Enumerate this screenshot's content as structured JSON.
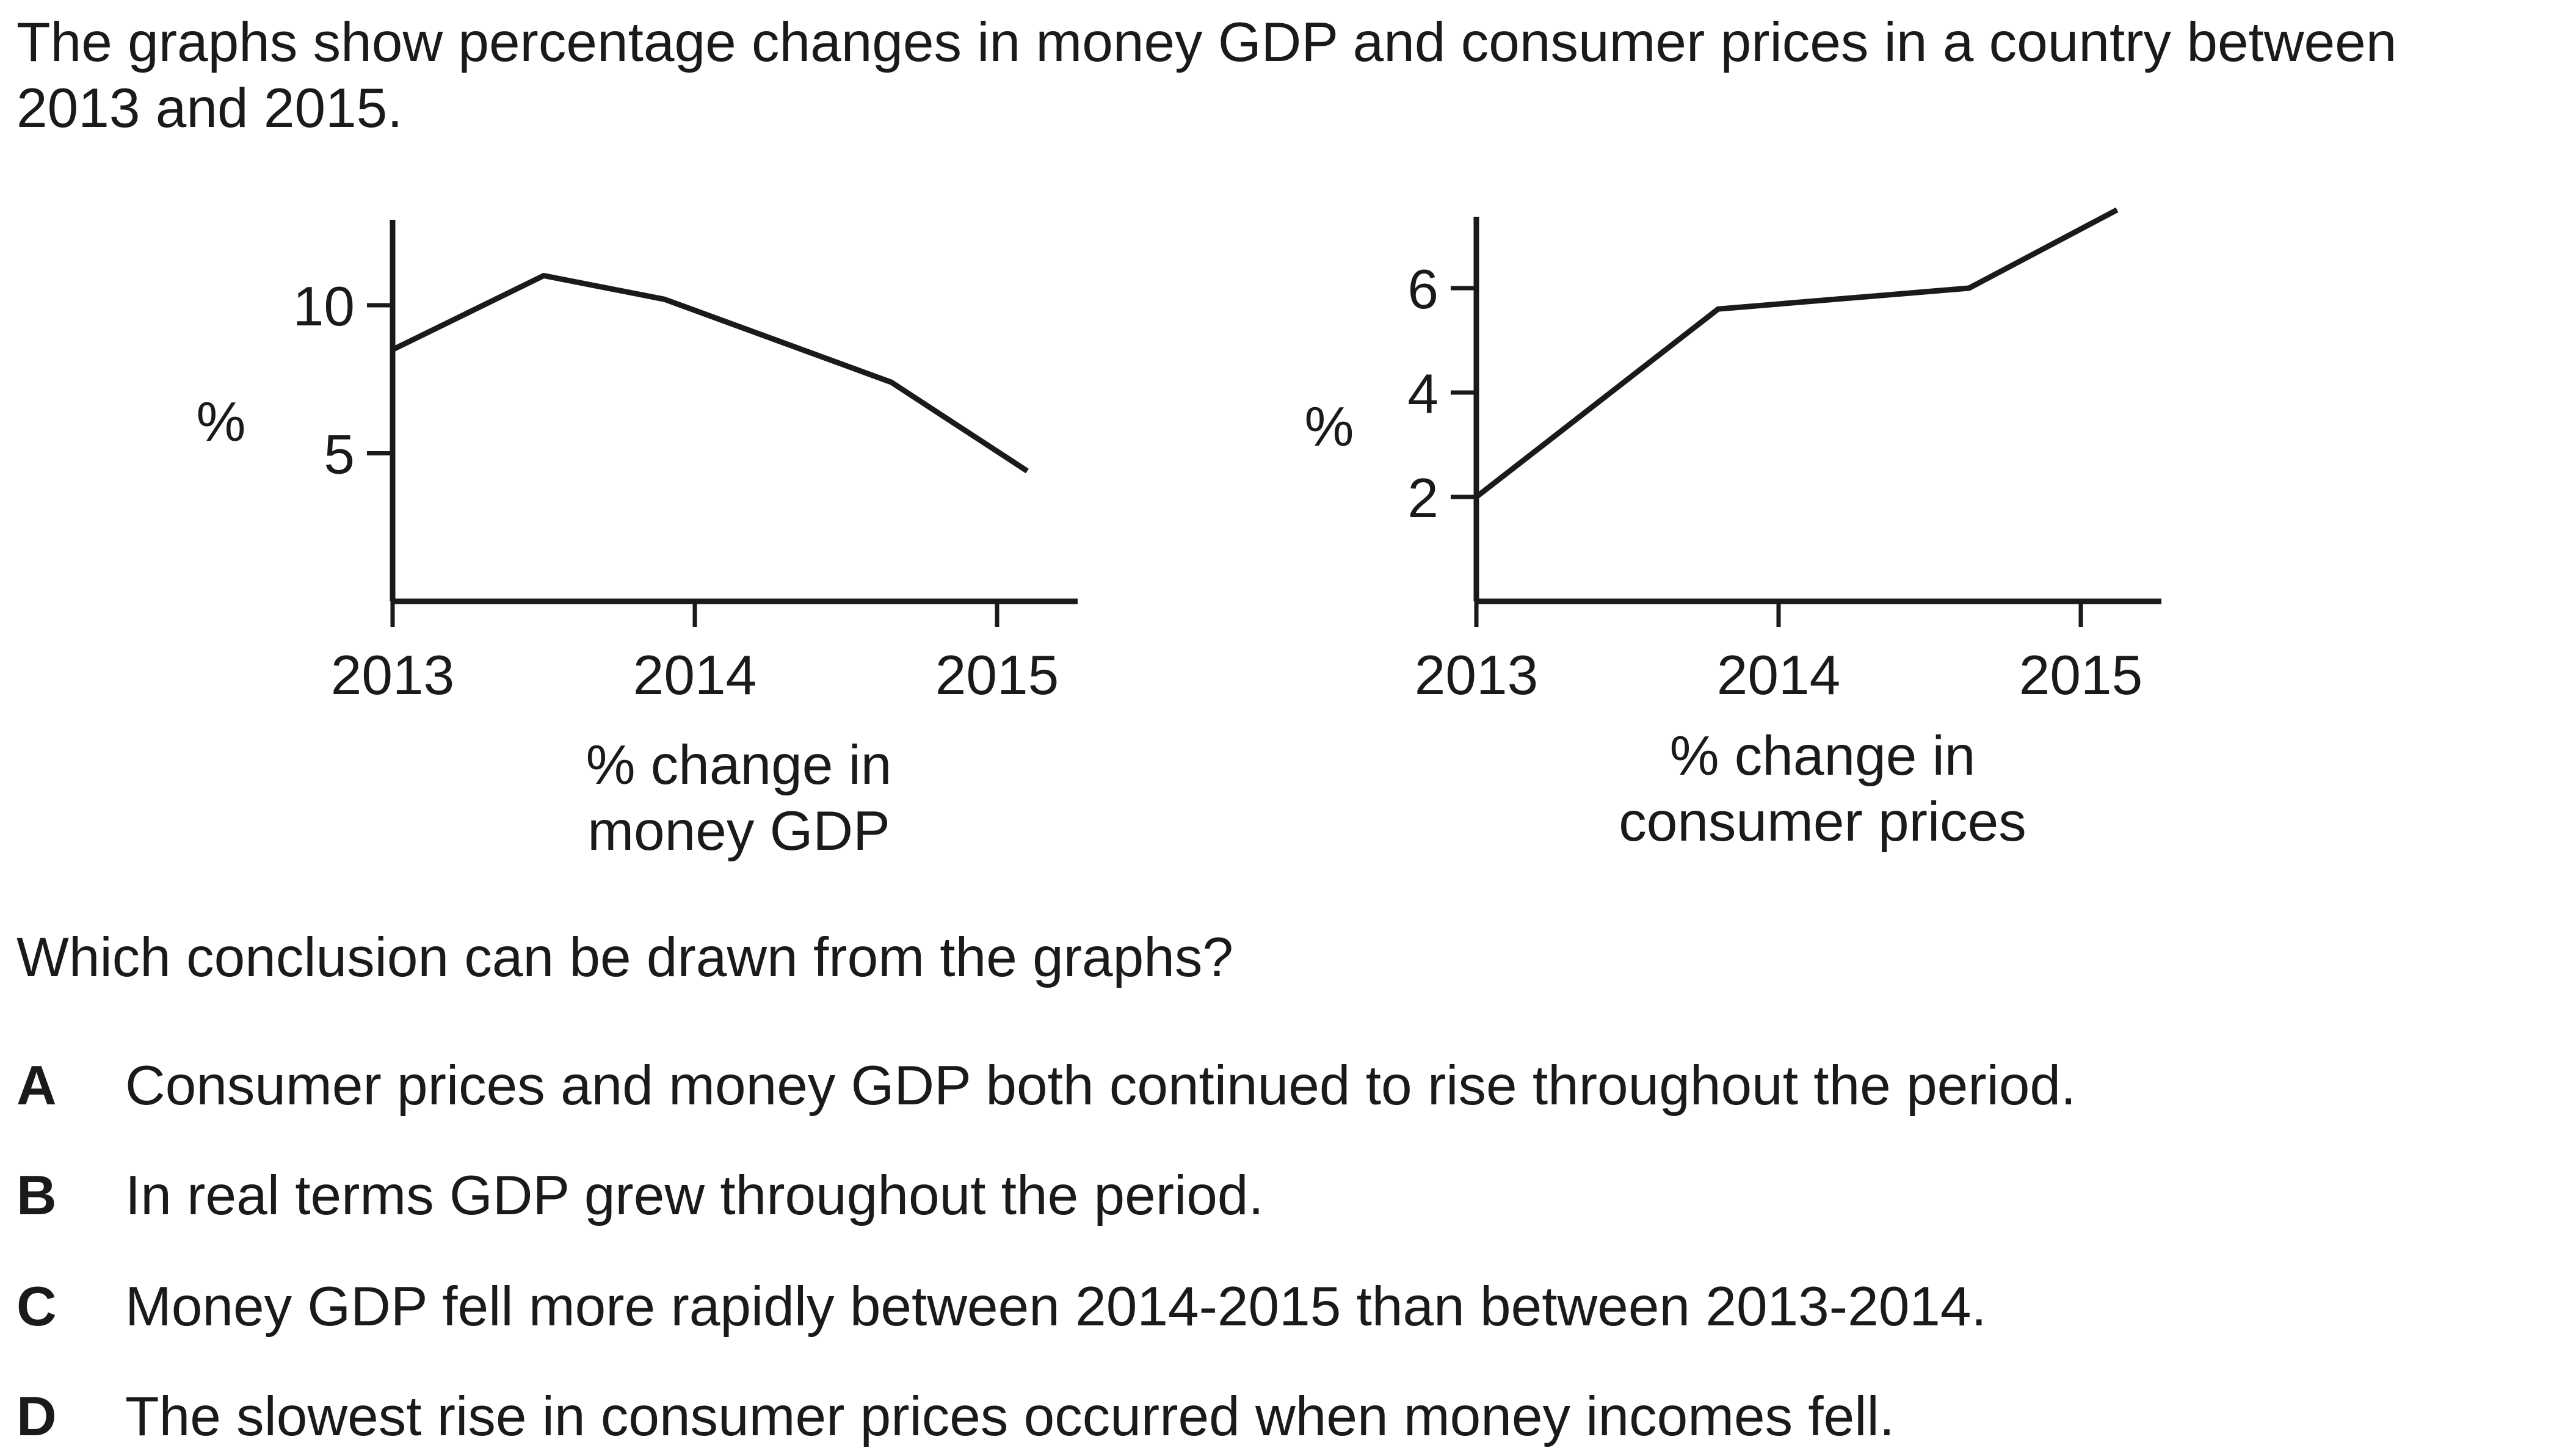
{
  "intro": "The graphs show percentage changes in money GDP and consumer prices in a country between 2013 and 2015.",
  "question": "Which conclusion can be drawn from the graphs?",
  "options": [
    {
      "letter": "A",
      "text": "Consumer prices and money GDP both continued to rise throughout the period."
    },
    {
      "letter": "B",
      "text": "In real terms GDP grew throughout the period."
    },
    {
      "letter": "C",
      "text": "Money GDP fell more rapidly between 2014-2015 than between 2013-2014."
    },
    {
      "letter": "D",
      "text": "The slowest rise in consumer prices occurred when money incomes fell."
    }
  ],
  "colors": {
    "line": "#1a1a1a",
    "axis": "#1a1a1a",
    "text": "#1a1a1a"
  },
  "chart_data": [
    {
      "type": "line",
      "caption_line1": "% change in",
      "caption_line2": "money GDP",
      "ylabel": "%",
      "yticks": [
        "5",
        "10"
      ],
      "xticks": [
        "2013",
        "2014",
        "2015"
      ],
      "xlim": [
        2013,
        2015.27
      ],
      "ylim": [
        0,
        12
      ],
      "grid": false,
      "series": [
        {
          "x": [
            2013,
            2013.5,
            2013.9,
            2014.65,
            2015.1
          ],
          "y": [
            8.5,
            11.0,
            10.2,
            7.4,
            4.4
          ]
        }
      ]
    },
    {
      "type": "line",
      "caption_line1": "% change in",
      "caption_line2": "consumer prices",
      "ylabel": "%",
      "yticks": [
        "2",
        "4",
        "6"
      ],
      "xticks": [
        "2013",
        "2014",
        "2015"
      ],
      "xlim": [
        2013,
        2015.27
      ],
      "ylim": [
        0,
        6.7
      ],
      "grid": false,
      "series": [
        {
          "x": [
            2013,
            2013.8,
            2014.63,
            2015.12
          ],
          "y": [
            2.0,
            5.6,
            6.0,
            7.5
          ]
        }
      ]
    }
  ]
}
